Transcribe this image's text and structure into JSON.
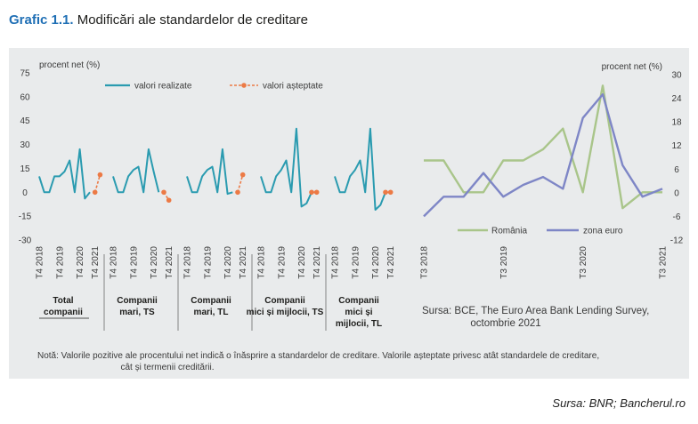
{
  "header": {
    "title_number": "Grafic 1.1.",
    "title_text": "Modificări ale standardelor de creditare"
  },
  "footer": {
    "source": "Sursa: BNR; Bancherul.ro"
  },
  "chart_data": [
    {
      "type": "line",
      "ylabel": "procent net (%)",
      "ylim": [
        -30,
        75
      ],
      "yticks": [
        75,
        60,
        45,
        30,
        15,
        0,
        -15,
        -30
      ],
      "x_tick_labels": [
        "T4 2018",
        "T4 2019",
        "T4 2020",
        "T4 2021"
      ],
      "legend": {
        "realized": "valori realizate",
        "expected": "valori așteptate"
      },
      "colors": {
        "realized": "#2a9bb0",
        "expected": "#ec7a45"
      },
      "groups": [
        {
          "label_lines": [
            "Total",
            "companii"
          ],
          "realized": [
            10,
            0,
            0,
            10,
            10,
            13,
            20,
            0,
            27,
            -4,
            0
          ],
          "expected": [
            [
              11,
              0
            ],
            [
              12,
              11
            ]
          ]
        },
        {
          "label_lines": [
            "Companii",
            "mari, TS"
          ],
          "realized": [
            10,
            0,
            0,
            10,
            14,
            16,
            0,
            27,
            13,
            0
          ],
          "expected": [
            [
              10,
              0
            ],
            [
              11,
              -5
            ]
          ]
        },
        {
          "label_lines": [
            "Companii",
            "mari, TL"
          ],
          "realized": [
            10,
            0,
            0,
            10,
            14,
            16,
            0,
            27,
            -1,
            0
          ],
          "expected": [
            [
              10,
              0
            ],
            [
              11,
              11
            ]
          ]
        },
        {
          "label_lines": [
            "Companii",
            "mici și mijlocii, TS"
          ],
          "realized": [
            10,
            0,
            0,
            10,
            14,
            20,
            0,
            40,
            -9,
            -7,
            0
          ],
          "expected": [
            [
              10,
              0
            ],
            [
              11,
              0
            ]
          ]
        },
        {
          "label_lines": [
            "Companii",
            "mici și",
            "mijlocii, TL"
          ],
          "realized": [
            10,
            0,
            0,
            10,
            14,
            20,
            0,
            40,
            -11,
            -8,
            0
          ],
          "expected": [
            [
              10,
              0
            ],
            [
              11,
              0
            ]
          ]
        }
      ],
      "source_lines": [
        "Sursa: BCE, The Euro Area Bank Lending Survey,",
        "octombrie 2021"
      ]
    },
    {
      "type": "line",
      "ylabel": "procent net (%)",
      "ylim": [
        -12,
        30
      ],
      "yticks": [
        30,
        24,
        18,
        12,
        6,
        0,
        -6,
        -12
      ],
      "x": [
        "T3 2018",
        "T4 2018",
        "T1 2019",
        "T2 2019",
        "T3 2019",
        "T4 2019",
        "T1 2020",
        "T2 2020",
        "T3 2020",
        "T4 2020",
        "T1 2021",
        "T2 2021",
        "T3 2021"
      ],
      "x_tick_labels": [
        "T3 2018",
        "T3 2019",
        "T3 2020",
        "T3 2021"
      ],
      "series": [
        {
          "name": "România",
          "color": "#a9c58a",
          "values": [
            20,
            20,
            0,
            0,
            20,
            20,
            27,
            40,
            0,
            67,
            -10,
            0,
            0
          ]
        },
        {
          "name": "zona euro",
          "color": "#7e86c6",
          "values": [
            -6,
            -1,
            -1,
            5,
            -1,
            2,
            4,
            1,
            19,
            25,
            7,
            -1,
            1
          ]
        }
      ]
    }
  ],
  "note": [
    "Notă: Valorile pozitive ale procentului net indică o înăsprire a standardelor de creditare. Valorile așteptate privesc atât standardele de creditare,",
    "cât și termenii creditării."
  ]
}
